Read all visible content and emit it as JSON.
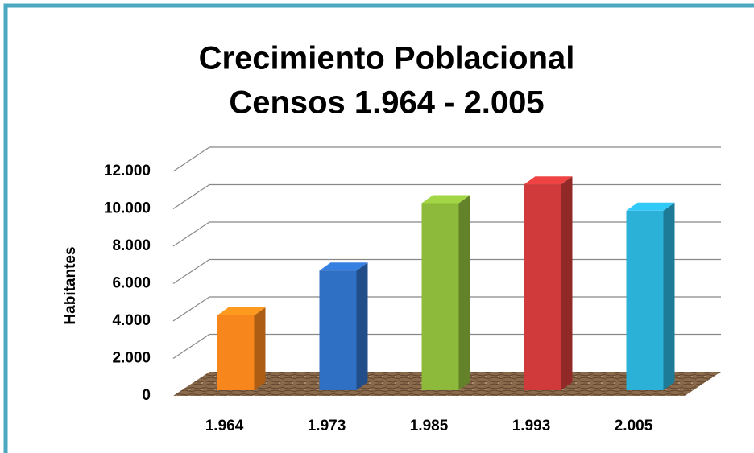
{
  "chart_data": {
    "type": "bar3d",
    "title": [
      "Crecimiento Poblacional",
      "Censos 1.964 - 2.005"
    ],
    "y_label": "Habitantes",
    "categories": [
      "1.964",
      "1.973",
      "1.985",
      "1.993",
      "2.005"
    ],
    "values": [
      4000,
      6400,
      10000,
      11000,
      9600
    ],
    "colors": [
      "#f7861c",
      "#2f6fc4",
      "#8dba3b",
      "#d03a3a",
      "#2bb0d8"
    ],
    "ylim": [
      0,
      12000
    ],
    "yticks": [
      0,
      {
        "value": 2000,
        "label": "2.000"
      },
      {
        "value": 4000,
        "label": "4.000"
      },
      {
        "value": 6000,
        "label": "6.000"
      },
      {
        "value": 8000,
        "label": "8.000"
      },
      {
        "value": 10000,
        "label": "10.000"
      },
      {
        "value": 12000,
        "label": "12.000"
      }
    ],
    "grid": true
  }
}
